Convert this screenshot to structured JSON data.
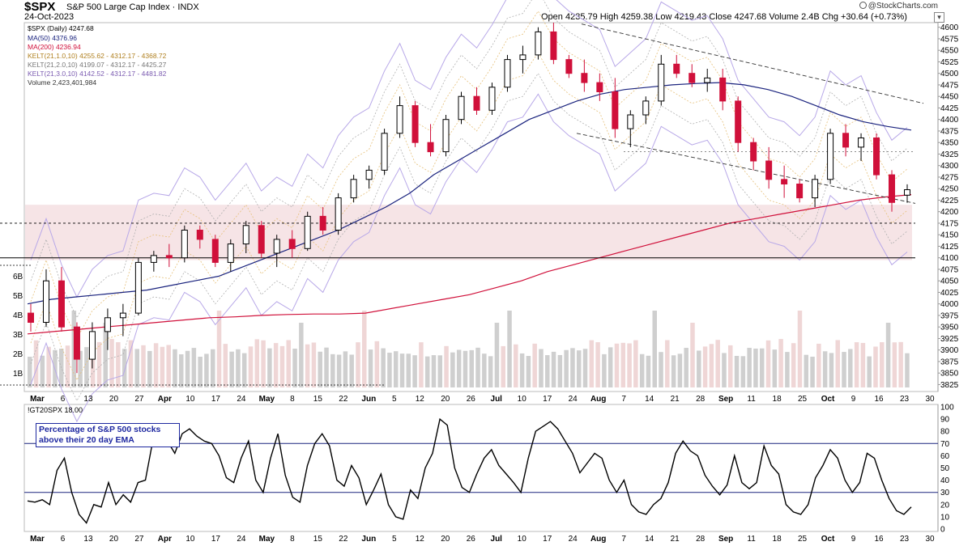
{
  "header": {
    "symbol": "$SPX",
    "description": "S&P 500 Large Cap Index",
    "exchange": "INDX",
    "date": "24-Oct-2023",
    "ohlc": "Open 4235.79  High 4259.38  Low 4219.43  Close 4247.68  Volume 2.4B  Chg +30.64 (+0.73%)",
    "brand": "@StockCharts.com",
    "close_glyph": "▾"
  },
  "legend": {
    "price": "$SPX (Daily) 4247.68",
    "ma50": "MA(50) 4376.96",
    "ma200": "MA(200) 4236.94",
    "kelt1": "KELT(21,1.0,10) 4255.62 - 4312.17 - 4368.72",
    "kelt2": "KELT(21,2.0,10) 4199.07 - 4312.17 - 4425.27",
    "kelt3": "KELT(21,3.0,10) 4142.52 - 4312.17 - 4481.82",
    "volume": "Volume 2,423,401,984"
  },
  "indicator": {
    "legend": "!GT20SPX 18.00",
    "note_line1": "Percentage of S&P 500 stocks",
    "note_line2": "above their 20 day EMA"
  },
  "colors": {
    "up": "#000000",
    "down": "#d0103a",
    "ma50": "#1a237e",
    "ma200": "#d0103a",
    "kelt1": "#e6c07a",
    "kelt2": "#b0b0b0",
    "kelt3": "#b8a8e8",
    "volume": "#cfcfcf",
    "volume_down": "#efd6d6",
    "zone": "#f6e4e6",
    "indicator": "#000000",
    "indicator_lines": "#1a237e"
  },
  "chart_data": [
    {
      "type": "candlestick",
      "title": "$SPX (Daily) 4247.68",
      "x_tick_labels": [
        "Mar",
        "6",
        "13",
        "20",
        "27",
        "Apr",
        "10",
        "17",
        "24",
        "May",
        "8",
        "15",
        "22",
        "Jun",
        "5",
        "12",
        "20",
        "26",
        "Jul",
        "10",
        "17",
        "24",
        "Aug",
        "7",
        "14",
        "21",
        "28",
        "Sep",
        "11",
        "18",
        "25",
        "Oct",
        "9",
        "16",
        "23",
        "30"
      ],
      "y_ticks": [
        3825,
        3850,
        3875,
        3900,
        3925,
        3950,
        3975,
        4000,
        4025,
        4050,
        4075,
        4100,
        4125,
        4150,
        4175,
        4200,
        4225,
        4250,
        4275,
        4300,
        4325,
        4350,
        4375,
        4400,
        4425,
        4450,
        4475,
        4500,
        4525,
        4550,
        4575,
        4600
      ],
      "ylim": [
        3810,
        4610
      ],
      "volume_ticks": [
        "1B",
        "2B",
        "3B",
        "4B",
        "5B",
        "6B"
      ],
      "horizontal_levels": [
        4100,
        4175
      ],
      "dotted_level": 4330,
      "support_zone": [
        4095,
        4215
      ],
      "trend_channel": {
        "upper": [
          [
            4607,
            "2023-07-27"
          ],
          [
            4435,
            "2023-10-27"
          ]
        ],
        "lower": [
          [
            4370,
            "2023-07-27"
          ],
          [
            4218,
            "2023-10-25"
          ]
        ]
      },
      "candles_ohlc_sampled": [
        [
          3980,
          4000,
          3940,
          3960
        ],
        [
          3960,
          4075,
          3950,
          4050
        ],
        [
          4050,
          4080,
          3940,
          3950
        ],
        [
          3950,
          3960,
          3850,
          3880
        ],
        [
          3880,
          3960,
          3860,
          3940
        ],
        [
          3940,
          3990,
          3900,
          3970
        ],
        [
          3970,
          4000,
          3930,
          3980
        ],
        [
          3980,
          4100,
          3975,
          4090
        ],
        [
          4090,
          4115,
          4070,
          4105
        ],
        [
          4105,
          4130,
          4080,
          4100
        ],
        [
          4100,
          4170,
          4090,
          4160
        ],
        [
          4160,
          4170,
          4120,
          4140
        ],
        [
          4140,
          4150,
          4080,
          4090
        ],
        [
          4090,
          4140,
          4070,
          4130
        ],
        [
          4130,
          4180,
          4110,
          4170
        ],
        [
          4170,
          4180,
          4100,
          4110
        ],
        [
          4110,
          4150,
          4080,
          4140
        ],
        [
          4140,
          4160,
          4100,
          4120
        ],
        [
          4120,
          4200,
          4115,
          4190
        ],
        [
          4190,
          4210,
          4150,
          4160
        ],
        [
          4160,
          4240,
          4150,
          4230
        ],
        [
          4230,
          4280,
          4220,
          4270
        ],
        [
          4270,
          4300,
          4250,
          4290
        ],
        [
          4290,
          4380,
          4280,
          4370
        ],
        [
          4370,
          4450,
          4360,
          4430
        ],
        [
          4430,
          4440,
          4340,
          4350
        ],
        [
          4350,
          4390,
          4320,
          4330
        ],
        [
          4330,
          4410,
          4320,
          4400
        ],
        [
          4400,
          4460,
          4390,
          4450
        ],
        [
          4450,
          4470,
          4410,
          4420
        ],
        [
          4420,
          4480,
          4410,
          4470
        ],
        [
          4470,
          4540,
          4460,
          4530
        ],
        [
          4530,
          4560,
          4500,
          4540
        ],
        [
          4540,
          4600,
          4530,
          4590
        ],
        [
          4590,
          4610,
          4520,
          4530
        ],
        [
          4530,
          4540,
          4490,
          4500
        ],
        [
          4500,
          4530,
          4460,
          4480
        ],
        [
          4480,
          4500,
          4440,
          4460
        ],
        [
          4460,
          4490,
          4360,
          4380
        ],
        [
          4380,
          4420,
          4340,
          4410
        ],
        [
          4410,
          4450,
          4390,
          4440
        ],
        [
          4440,
          4540,
          4430,
          4520
        ],
        [
          4520,
          4540,
          4490,
          4500
        ],
        [
          4500,
          4520,
          4470,
          4480
        ],
        [
          4480,
          4510,
          4460,
          4490
        ],
        [
          4490,
          4510,
          4420,
          4440
        ],
        [
          4440,
          4450,
          4330,
          4350
        ],
        [
          4350,
          4360,
          4290,
          4310
        ],
        [
          4310,
          4340,
          4250,
          4270
        ],
        [
          4270,
          4300,
          4230,
          4260
        ],
        [
          4260,
          4270,
          4220,
          4230
        ],
        [
          4230,
          4280,
          4210,
          4270
        ],
        [
          4270,
          4380,
          4260,
          4370
        ],
        [
          4370,
          4390,
          4320,
          4340
        ],
        [
          4340,
          4370,
          4310,
          4360
        ],
        [
          4360,
          4370,
          4270,
          4280
        ],
        [
          4280,
          4290,
          4200,
          4220
        ],
        [
          4235.79,
          4259.38,
          4219.43,
          4247.68
        ]
      ],
      "ma50_sampled": [
        4000,
        4010,
        4015,
        4020,
        4025,
        4030,
        4040,
        4050,
        4060,
        4080,
        4100,
        4120,
        4140,
        4160,
        4185,
        4210,
        4240,
        4280,
        4310,
        4340,
        4370,
        4400,
        4420,
        4440,
        4455,
        4465,
        4470,
        4475,
        4478,
        4480,
        4475,
        4465,
        4450,
        4430,
        4410,
        4395,
        4385,
        4376.96
      ],
      "ma200_sampled": [
        3935,
        3940,
        3945,
        3950,
        3955,
        3960,
        3965,
        3970,
        3972,
        3975,
        3977,
        3978,
        3978,
        3980,
        3990,
        4000,
        4010,
        4020,
        4035,
        4050,
        4070,
        4085,
        4100,
        4115,
        4130,
        4145,
        4160,
        4175,
        4185,
        4195,
        4205,
        4215,
        4225,
        4232,
        4236.94
      ]
    },
    {
      "type": "line",
      "title": "!GT20SPX 18.00",
      "x_tick_labels": [
        "Mar",
        "6",
        "13",
        "20",
        "27",
        "Apr",
        "10",
        "17",
        "24",
        "May",
        "8",
        "15",
        "22",
        "Jun",
        "5",
        "12",
        "20",
        "26",
        "Jul",
        "10",
        "17",
        "24",
        "Aug",
        "7",
        "14",
        "21",
        "28",
        "Sep",
        "11",
        "18",
        "25",
        "Oct",
        "9",
        "16",
        "23",
        "30"
      ],
      "y_ticks": [
        0,
        10,
        20,
        30,
        40,
        50,
        60,
        70,
        80,
        90,
        100
      ],
      "ylim": [
        0,
        100
      ],
      "reference_lines": [
        30,
        70
      ],
      "values": [
        23,
        22,
        24,
        20,
        48,
        58,
        30,
        12,
        5,
        20,
        18,
        38,
        20,
        28,
        22,
        38,
        40,
        72,
        80,
        72,
        62,
        78,
        82,
        76,
        72,
        70,
        60,
        42,
        38,
        58,
        72,
        40,
        30,
        58,
        78,
        44,
        26,
        22,
        52,
        70,
        78,
        68,
        40,
        35,
        52,
        42,
        20,
        32,
        45,
        20,
        10,
        8,
        32,
        25,
        50,
        62,
        90,
        85,
        50,
        34,
        30,
        45,
        58,
        65,
        52,
        45,
        38,
        30,
        58,
        80,
        84,
        88,
        82,
        72,
        62,
        46,
        54,
        62,
        58,
        40,
        30,
        40,
        20,
        14,
        12,
        20,
        25,
        38,
        62,
        72,
        64,
        60,
        44,
        35,
        28,
        36,
        60,
        38,
        33,
        38,
        68,
        52,
        45,
        20,
        14,
        12,
        20,
        42,
        52,
        65,
        58,
        40,
        30,
        38,
        62,
        58,
        40,
        25,
        15,
        12,
        18
      ]
    }
  ]
}
